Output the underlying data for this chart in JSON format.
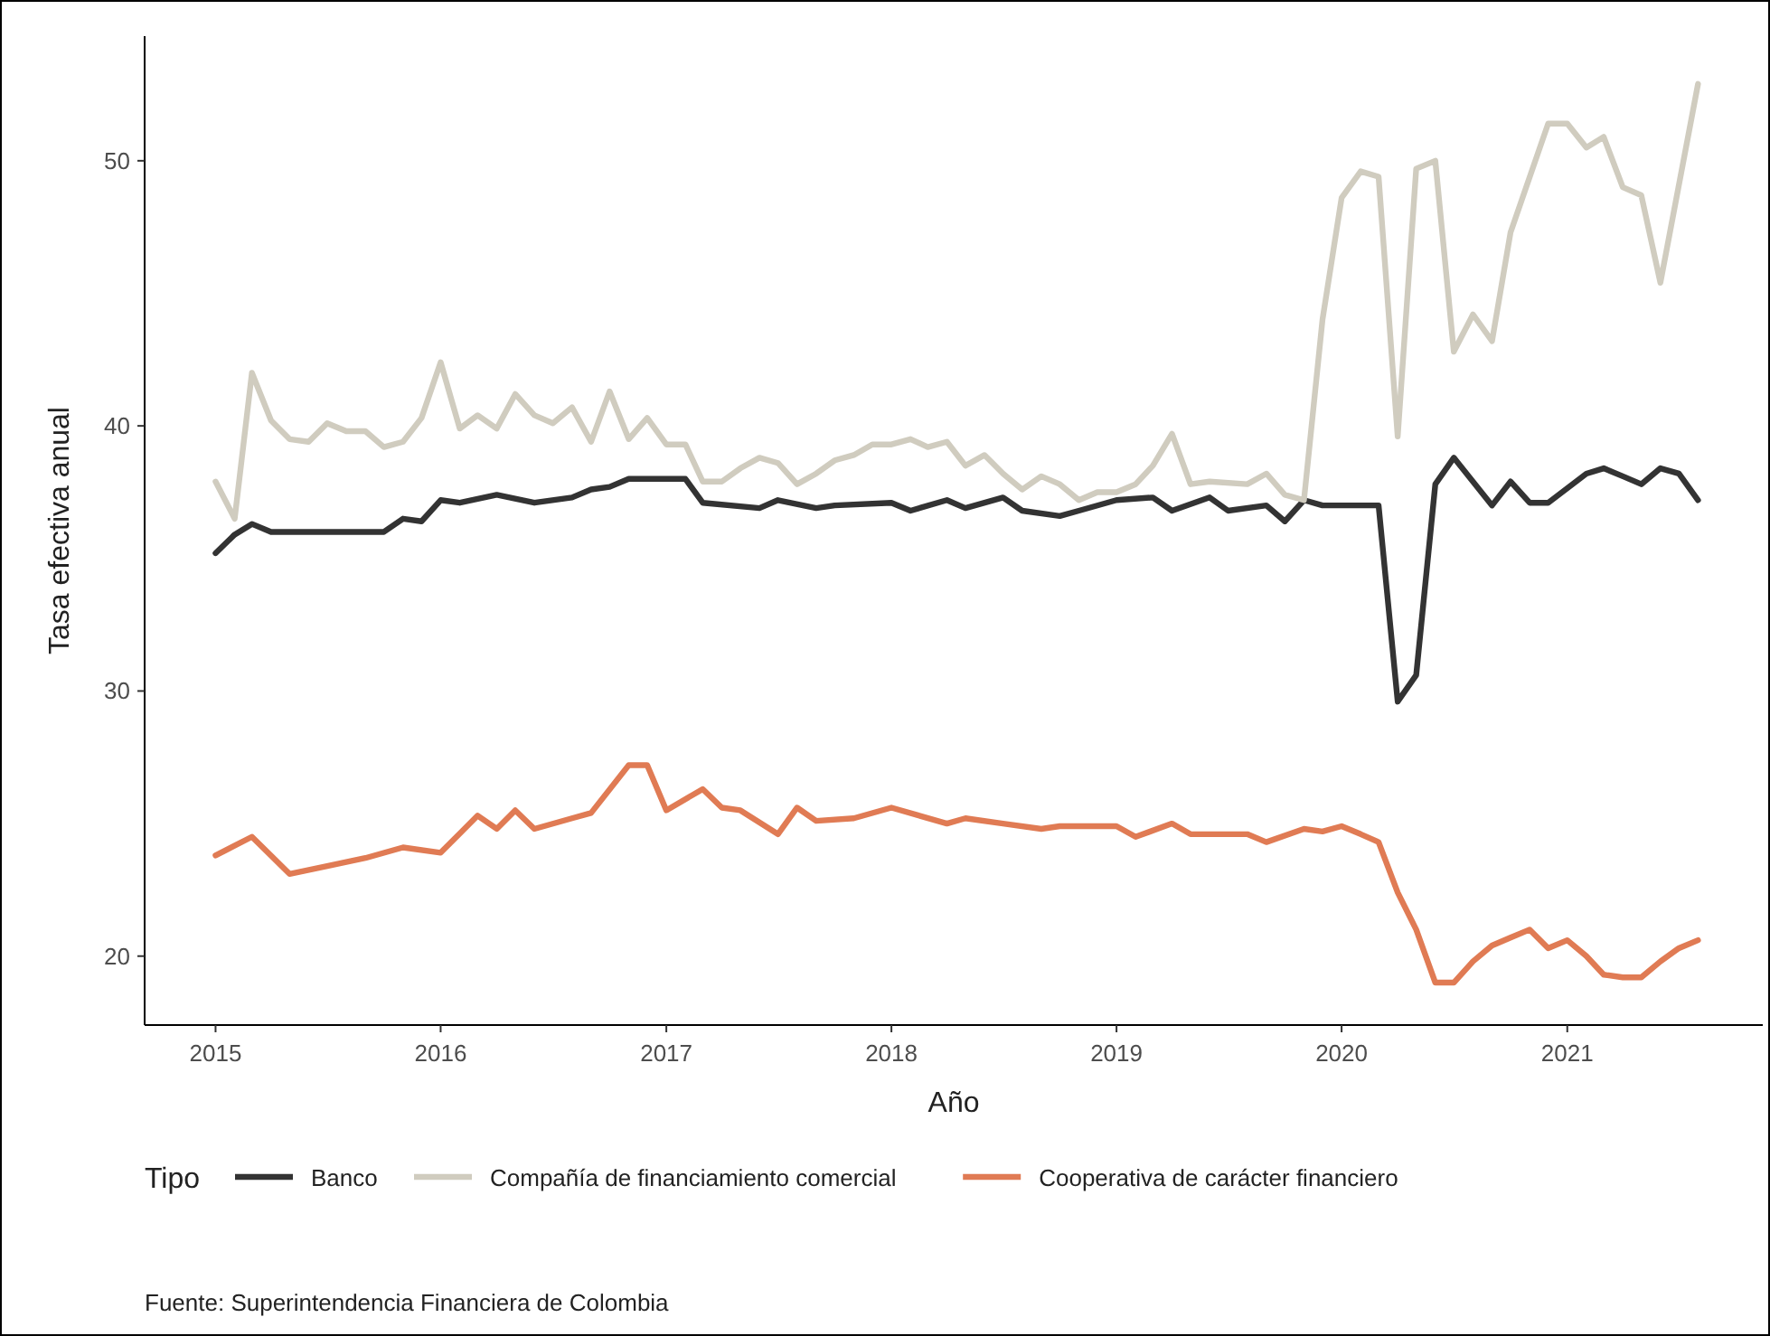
{
  "chart_data": {
    "type": "line",
    "xlabel": "Año",
    "ylabel": "Tasa efectiva anual",
    "legend_title": "Tipo",
    "legend": "bottom",
    "grid": false,
    "xlim": [
      "2014-09-08",
      "2021-11-14"
    ],
    "ylim": [
      17.4,
      54.7
    ],
    "xticks": [
      {
        "value": "2015-01-01",
        "label": "2015"
      },
      {
        "value": "2016-01-01",
        "label": "2016"
      },
      {
        "value": "2017-01-01",
        "label": "2017"
      },
      {
        "value": "2018-01-01",
        "label": "2018"
      },
      {
        "value": "2019-01-01",
        "label": "2019"
      },
      {
        "value": "2020-01-01",
        "label": "2020"
      },
      {
        "value": "2021-01-01",
        "label": "2021"
      }
    ],
    "yticks": [
      20,
      30,
      40,
      50
    ],
    "annotations": [
      "Fuente: Superintendencia Financiera de Colombia"
    ],
    "series": [
      {
        "name": "Banco",
        "color": "#333333",
        "x": [
          "2015-01",
          "2015-02",
          "2015-03",
          "2015-04",
          "2015-07",
          "2015-10",
          "2015-11",
          "2015-12",
          "2016-01",
          "2016-02",
          "2016-04",
          "2016-06",
          "2016-08",
          "2016-09",
          "2016-10",
          "2016-11",
          "2017-01",
          "2017-02",
          "2017-03",
          "2017-06",
          "2017-07",
          "2017-09",
          "2017-10",
          "2018-01",
          "2018-02",
          "2018-04",
          "2018-05",
          "2018-07",
          "2018-08",
          "2018-10",
          "2018-11",
          "2019-01",
          "2019-03",
          "2019-04",
          "2019-06",
          "2019-07",
          "2019-09",
          "2019-10",
          "2019-11",
          "2019-12",
          "2020-03",
          "2020-04",
          "2020-05",
          "2020-06",
          "2020-07",
          "2020-09",
          "2020-10",
          "2020-11",
          "2020-12",
          "2021-02",
          "2021-03",
          "2021-04",
          "2021-05",
          "2021-06",
          "2021-07",
          "2021-08"
        ],
        "values": [
          35.2,
          35.9,
          36.3,
          36.0,
          36.0,
          36.0,
          36.5,
          36.4,
          37.2,
          37.1,
          37.4,
          37.1,
          37.3,
          37.6,
          37.7,
          38.0,
          38.0,
          38.0,
          37.1,
          36.9,
          37.2,
          36.9,
          37.0,
          37.1,
          36.8,
          37.2,
          36.9,
          37.3,
          36.8,
          36.6,
          36.8,
          37.2,
          37.3,
          36.8,
          37.3,
          36.8,
          37.0,
          36.4,
          37.2,
          37.0,
          37.0,
          29.6,
          30.6,
          37.8,
          38.8,
          37.0,
          37.9,
          37.1,
          37.1,
          38.2,
          38.4,
          38.1,
          37.8,
          38.4,
          38.2,
          37.2
        ]
      },
      {
        "name": "Compañía de financiamiento comercial",
        "color": "#d0ccbf",
        "x": [
          "2015-01",
          "2015-02",
          "2015-03",
          "2015-04",
          "2015-05",
          "2015-06",
          "2015-07",
          "2015-08",
          "2015-09",
          "2015-10",
          "2015-11",
          "2015-12",
          "2016-01",
          "2016-02",
          "2016-03",
          "2016-04",
          "2016-05",
          "2016-06",
          "2016-07",
          "2016-08",
          "2016-09",
          "2016-10",
          "2016-11",
          "2016-12",
          "2017-01",
          "2017-02",
          "2017-03",
          "2017-04",
          "2017-05",
          "2017-06",
          "2017-07",
          "2017-08",
          "2017-09",
          "2017-10",
          "2017-11",
          "2017-12",
          "2018-01",
          "2018-02",
          "2018-03",
          "2018-04",
          "2018-05",
          "2018-06",
          "2018-07",
          "2018-08",
          "2018-09",
          "2018-10",
          "2018-11",
          "2018-12",
          "2019-01",
          "2019-02",
          "2019-03",
          "2019-04",
          "2019-05",
          "2019-06",
          "2019-08",
          "2019-09",
          "2019-10",
          "2019-11",
          "2019-12",
          "2020-01",
          "2020-02",
          "2020-03",
          "2020-04",
          "2020-05",
          "2020-06",
          "2020-07",
          "2020-08",
          "2020-09",
          "2020-10",
          "2020-12",
          "2021-01",
          "2021-02",
          "2021-03",
          "2021-04",
          "2021-05",
          "2021-06",
          "2021-08"
        ],
        "values": [
          37.9,
          36.5,
          42.0,
          40.2,
          39.5,
          39.4,
          40.1,
          39.8,
          39.8,
          39.2,
          39.4,
          40.3,
          42.4,
          39.9,
          40.4,
          39.9,
          41.2,
          40.4,
          40.1,
          40.7,
          39.4,
          41.3,
          39.5,
          40.3,
          39.3,
          39.3,
          37.9,
          37.9,
          38.4,
          38.8,
          38.6,
          37.8,
          38.2,
          38.7,
          38.9,
          39.3,
          39.3,
          39.5,
          39.2,
          39.4,
          38.5,
          38.9,
          38.2,
          37.6,
          38.1,
          37.8,
          37.2,
          37.5,
          37.5,
          37.8,
          38.5,
          39.7,
          37.8,
          37.9,
          37.8,
          38.2,
          37.4,
          37.2,
          44.0,
          48.6,
          49.6,
          49.4,
          39.6,
          49.7,
          50.0,
          42.8,
          44.2,
          43.2,
          47.3,
          51.4,
          51.4,
          50.5,
          50.9,
          49.0,
          48.7,
          45.4,
          52.9
        ]
      },
      {
        "name": "Cooperativa de carácter financiero",
        "color": "#e07b54",
        "x": [
          "2015-01",
          "2015-03",
          "2015-05",
          "2015-07",
          "2015-09",
          "2015-11",
          "2016-01",
          "2016-03",
          "2016-04",
          "2016-05",
          "2016-06",
          "2016-08",
          "2016-09",
          "2016-11",
          "2016-12",
          "2017-01",
          "2017-03",
          "2017-04",
          "2017-05",
          "2017-07",
          "2017-08",
          "2017-09",
          "2017-11",
          "2018-01",
          "2018-04",
          "2018-05",
          "2018-07",
          "2018-09",
          "2018-10",
          "2019-01",
          "2019-02",
          "2019-04",
          "2019-05",
          "2019-08",
          "2019-09",
          "2019-11",
          "2019-12",
          "2020-01",
          "2020-02",
          "2020-03",
          "2020-04",
          "2020-05",
          "2020-06",
          "2020-07",
          "2020-08",
          "2020-09",
          "2020-10",
          "2020-11",
          "2020-12",
          "2021-01",
          "2021-02",
          "2021-03",
          "2021-04",
          "2021-05",
          "2021-06",
          "2021-07",
          "2021-08"
        ],
        "values": [
          23.8,
          24.5,
          23.1,
          23.4,
          23.7,
          24.1,
          23.9,
          25.3,
          24.8,
          25.5,
          24.8,
          25.2,
          25.4,
          27.2,
          27.2,
          25.5,
          26.3,
          25.6,
          25.5,
          24.6,
          25.6,
          25.1,
          25.2,
          25.6,
          25.0,
          25.2,
          25.0,
          24.8,
          24.9,
          24.9,
          24.5,
          25.0,
          24.6,
          24.6,
          24.3,
          24.8,
          24.7,
          24.9,
          24.6,
          24.3,
          22.4,
          21.0,
          19.0,
          19.0,
          19.8,
          20.4,
          20.7,
          21.0,
          20.3,
          20.6,
          20.0,
          19.3,
          19.2,
          19.2,
          19.8,
          20.3,
          20.6
        ]
      }
    ]
  }
}
